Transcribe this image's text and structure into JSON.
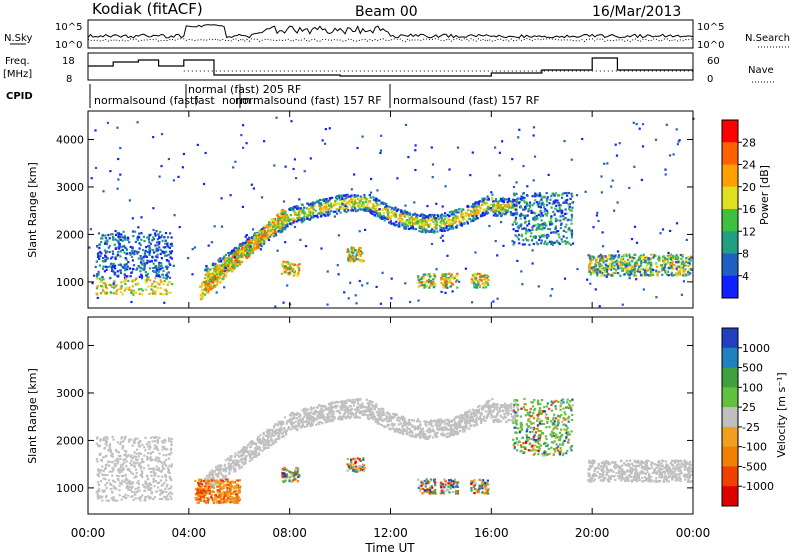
{
  "header": {
    "station": "Kodiak (fitACF)",
    "beam": "Beam 00",
    "date": "16/Mar/2013"
  },
  "top_panels": {
    "nsky_label": "N.Sky",
    "nsearch_label": "N.Search",
    "noise_ticks": [
      "10^5",
      "10^0"
    ],
    "freq_label_1": "Freq.",
    "freq_label_2": "[MHz]",
    "freq_ticks": [
      "18",
      "8"
    ],
    "nave_label": "Nave",
    "nave_ticks": [
      "60",
      "0"
    ],
    "cpid_label": "CPID",
    "cpid_names": [
      "normalsound (fast)",
      "normal (fast) 205 RF",
      "normalsound (fast) 157 RF",
      "normalsound (fast) 157 RF"
    ],
    "cpid_overlap_1": "fast",
    "cpid_overlap_2": "norm"
  },
  "colors": {
    "scatter_blue": "#3050d0",
    "scatter_green": "#20a040",
    "scatter_yellow": "#d0d020",
    "scatter_orange": "#f08020",
    "scatter_red": "#e02020",
    "ground_gray": "#c0c0c0"
  },
  "chart_data": [
    {
      "type": "heatmap",
      "name": "power",
      "ylabel": "Slant Range [km]",
      "yticks": [
        "1000",
        "2000",
        "3000",
        "4000"
      ],
      "ylim": [
        450,
        4600
      ],
      "xlim": [
        0,
        24
      ],
      "colorbar_label": "Power [dB]",
      "colorbar_ticks": [
        "28",
        "24",
        "20",
        "16",
        "12",
        "8",
        "4"
      ],
      "colorbar_colors": [
        "#ff0000",
        "#ff6000",
        "#ffa000",
        "#e0e020",
        "#40c040",
        "#20a080",
        "#2060c0",
        "#1020ff"
      ],
      "features": [
        {
          "t0": 0.4,
          "t1": 1.6,
          "r0": 700,
          "r1": 2100
        },
        {
          "t0": 1.6,
          "t1": 3.2,
          "r0": 700,
          "r1": 2000
        },
        {
          "t0": 4.6,
          "t1": 8.0,
          "r0": 900,
          "r1": 2500
        },
        {
          "t0": 7.0,
          "t1": 17.0,
          "r0": 2100,
          "r1": 2800
        },
        {
          "t0": 17.0,
          "t1": 19.0,
          "r0": 1700,
          "r1": 2900
        },
        {
          "t0": 20.0,
          "t1": 24.0,
          "r0": 1100,
          "r1": 1600
        }
      ]
    },
    {
      "type": "heatmap",
      "name": "velocity",
      "ylabel": "Slant Range [km]",
      "yticks": [
        "1000",
        "2000",
        "3000",
        "4000"
      ],
      "ylim": [
        450,
        4600
      ],
      "xlim": [
        0,
        24
      ],
      "xlabel": "Time UT",
      "xticks": [
        "00:00",
        "04:00",
        "08:00",
        "12:00",
        "16:00",
        "20:00",
        "00:00"
      ],
      "colorbar_label": "Velocity [m s⁻¹]",
      "colorbar_ticks": [
        "1000",
        "500",
        "100",
        "25",
        "-25",
        "-100",
        "-500",
        "-1000"
      ],
      "colorbar_colors": [
        "#2040c0",
        "#2080c0",
        "#40a040",
        "#60c040",
        "#c0c0c0",
        "#f0a020",
        "#f08000",
        "#f04000",
        "#e00000"
      ]
    }
  ]
}
